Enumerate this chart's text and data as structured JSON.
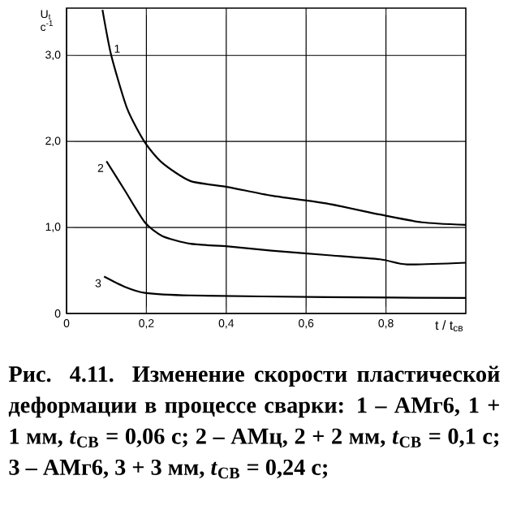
{
  "chart_data": {
    "type": "line",
    "ylabel": "U$_{t}$ с$^{-1}$",
    "xlabel": "t / t$_{св}$",
    "x": [
      0.09,
      0.112,
      0.152,
      0.196,
      0.24,
      0.31,
      0.404,
      0.513,
      0.65,
      0.785,
      0.89,
      1.0
    ],
    "series": [
      {
        "name": "1",
        "color": "#000000",
        "values": [
          3.53,
          3.0,
          2.38,
          1.99,
          1.75,
          1.54,
          1.47,
          1.37,
          1.28,
          1.15,
          1.06,
          1.03
        ]
      },
      {
        "name": "2",
        "color": "#000000",
        "x": [
          0.1,
          0.146,
          0.196,
          0.24,
          0.31,
          0.404,
          0.513,
          0.65,
          0.785,
          0.853,
          1.0
        ],
        "values": [
          1.77,
          1.43,
          1.06,
          0.9,
          0.81,
          0.78,
          0.73,
          0.68,
          0.63,
          0.57,
          0.59
        ]
      },
      {
        "name": "3",
        "color": "#000000",
        "x": [
          0.094,
          0.146,
          0.196,
          0.31,
          0.65,
          1.0
        ],
        "values": [
          0.43,
          0.31,
          0.24,
          0.21,
          0.19,
          0.18
        ]
      }
    ],
    "xlim": [
      0,
      1.0
    ],
    "ylim": [
      0,
      3.55
    ],
    "xticks": [
      {
        "value": 0,
        "label": "0"
      },
      {
        "value": 0.2,
        "label": "0,2"
      },
      {
        "value": 0.4,
        "label": "0,4"
      },
      {
        "value": 0.6,
        "label": "0,6"
      },
      {
        "value": 0.8,
        "label": "0,8"
      }
    ],
    "yticks": [
      {
        "value": 0,
        "label": "0"
      },
      {
        "value": 1.0,
        "label": "1,0"
      },
      {
        "value": 2.0,
        "label": "2,0"
      },
      {
        "value": 3.0,
        "label": "3,0"
      }
    ],
    "grid": true,
    "marker": "none",
    "line_style": "solid",
    "legend": false,
    "annotations": [
      "Рис. 4.11. Изменение скорости пластической деформации в процессе сварки: 1 – АМг6, 1 + 1 мм, *t*$_{СВ}$ = 0,06 с; 2 – АМц, 2 + 2 мм, *t*$_{СВ}$ = 0,1 с; 3 – АМг6, 3 + 3 мм, *t*$_{СВ}$ = 0,24 с;"
    ]
  }
}
